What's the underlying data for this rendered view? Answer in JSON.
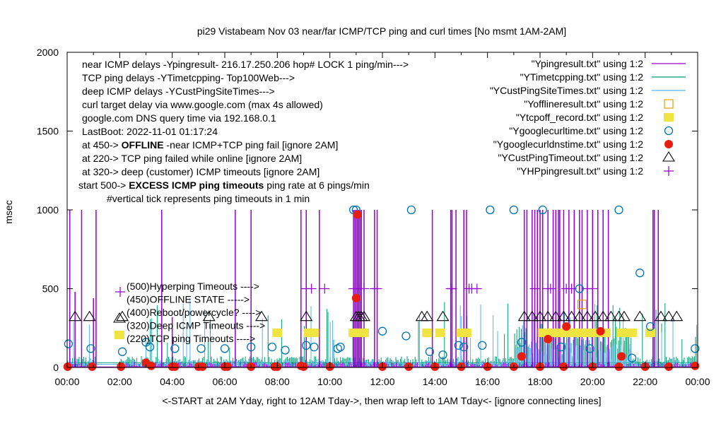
{
  "chart_data": {
    "type": "line",
    "title": "pi29 Vistabeam Nov 03  near/far ICMP/TCP ping and curl times [No msmt 1AM-2AM]",
    "xlabel": "<-START at 2AM Yday, right to 12AM Tday->, then wrap left to 1AM Tday<- [ignore connecting lines]",
    "ylabel": "msec",
    "xlim": [
      0,
      24
    ],
    "ylim": [
      0,
      2000
    ],
    "x_ticks": [
      "00:00",
      "02:00",
      "04:00",
      "06:00",
      "08:00",
      "10:00",
      "12:00",
      "14:00",
      "16:00",
      "18:00",
      "20:00",
      "22:00",
      "00:00"
    ],
    "y_ticks": [
      "0",
      "500",
      "1000",
      "1500",
      "2000"
    ],
    "y_tick_values": [
      0,
      500,
      1000,
      1500,
      2000
    ],
    "grid": false,
    "legend_placement": "top-right",
    "colors": {
      "ping": "#9400d3",
      "tcp": "#009e73",
      "cust": "#56b4e9",
      "offline": "#e69f00",
      "tcpoff": "#f0e442",
      "curl": "#0072b2",
      "dns": "#e51e10",
      "custtimeout": "#000000",
      "hp": "#9400d3"
    },
    "annotations_top": [
      {
        "text": "near ICMP delays -Ypingresult- 216.17.250.206 hop# LOCK 1 ping/min--->"
      },
      {
        "text": "TCP ping delays -YTimetcpping- Top100Web--->"
      },
      {
        "text": "deep ICMP delays -YCustPingSiteTimes--->"
      },
      {
        "text": "curl target delay via www.google.com (max 4s allowed)"
      },
      {
        "text": "google.com DNS query time via 192.168.0.1"
      },
      {
        "text": "LastBoot: 2022-11-01 01:17:24"
      },
      {
        "pre": "at 450-> ",
        "bold": "OFFLINE",
        "post": " -near ICMP+TCP ping fail [ignore 2AM]"
      },
      {
        "text": "at 220-> TCP ping failed while online [ignore 2AM]"
      },
      {
        "text": "at 320-> deep (customer) ICMP timeouts [ignore 2AM]"
      },
      {
        "pre": "start 500-> ",
        "bold": "EXCESS ICMP ping timeouts",
        "post": " ping rate at 6 pings/min"
      },
      {
        "text": "#vertical tick represents ping timeouts in 1 min"
      }
    ],
    "annotations_bottom": [
      "(500)Hyperping Timeouts ---->",
      "(450)OFFLINE STATE ----->",
      "(400)Reboot/powercycle? ---->",
      "(320)Deep ICMP Timeouts ---->",
      "(220)TCP ping Timeouts ---->"
    ],
    "legend": [
      {
        "label": "\"Ypingresult.txt\" using 1:2",
        "style": "line",
        "color_key": "ping"
      },
      {
        "label": "\"YTimetcpping.txt\" using 1:2",
        "style": "line",
        "color_key": "tcp"
      },
      {
        "label": "\"YCustPingSiteTimes.txt\" using 1:2",
        "style": "line",
        "color_key": "cust"
      },
      {
        "label": "\"Yofflineresult.txt\" using 1:2",
        "style": "open-square",
        "color_key": "offline"
      },
      {
        "label": "\"Ytcpoff_record.txt\" using 1:2",
        "style": "filled-square",
        "color_key": "tcpoff"
      },
      {
        "label": "\"Ygooglecurltime.txt\" using 1:2",
        "style": "open-circle",
        "color_key": "curl"
      },
      {
        "label": "\"Ygooglecurldnstime.txt\" using 1:2",
        "style": "filled-circle",
        "color_key": "dns"
      },
      {
        "label": "\"YCustPingTimeout.txt\" using 1:2",
        "style": "open-triangle",
        "color_key": "custtimeout"
      },
      {
        "label": "\"YHPpingresult.txt\" using 1:2",
        "style": "plus",
        "color_key": "hp"
      }
    ],
    "series": [
      {
        "name": "Ypingresult.txt",
        "kind": "spikes",
        "color_key": "ping",
        "x": [
          0.1,
          0.3,
          0.55,
          1.0,
          1.1,
          3.6,
          4.0,
          6.4,
          7.0,
          8.9,
          9.1,
          9.6,
          10.9,
          10.95,
          11.0,
          11.05,
          11.1,
          11.15,
          11.2,
          11.3,
          11.7,
          11.8,
          13.9,
          14.6,
          14.65,
          14.8,
          15.1,
          15.2,
          17.4,
          17.5,
          17.7,
          17.8,
          17.9,
          18.0,
          18.1,
          18.3,
          18.5,
          18.6,
          18.7,
          18.75,
          18.9,
          19.1,
          19.3,
          19.5,
          19.6,
          19.8,
          20.0,
          20.2,
          20.4,
          20.6,
          22.3,
          22.35,
          22.5
        ],
        "y": [
          1000,
          480,
          1000,
          440,
          1000,
          1000,
          320,
          1000,
          1000,
          1000,
          1000,
          1000,
          1000,
          1000,
          1000,
          1000,
          1000,
          1000,
          1000,
          1000,
          1000,
          1000,
          1000,
          1000,
          1000,
          1000,
          1000,
          1000,
          1000,
          1000,
          1000,
          1000,
          1000,
          1000,
          1000,
          1000,
          1000,
          1000,
          1000,
          1000,
          1000,
          1000,
          1000,
          1000,
          1000,
          1000,
          1000,
          1000,
          1000,
          1000,
          1000,
          1000,
          1000
        ]
      },
      {
        "name": "YTimetcpping.txt",
        "kind": "noise",
        "color_key": "tcp",
        "level": 60,
        "peak": 420
      },
      {
        "name": "YCustPingSiteTimes.txt",
        "kind": "noise",
        "color_key": "cust",
        "level": 40,
        "peak": 450
      },
      {
        "name": "Yofflineresult.txt",
        "kind": "open-square",
        "color_key": "offline",
        "x": [
          19.6
        ],
        "y": [
          400
        ]
      },
      {
        "name": "Ytcpoff_record.txt",
        "kind": "filled-square",
        "color_key": "tcpoff",
        "x": [
          8.0,
          9.2,
          9.4,
          10.9,
          11.0,
          11.1,
          11.2,
          11.3,
          13.7,
          14.2,
          15.0,
          15.2,
          18.1,
          18.3,
          18.5,
          18.7,
          18.9,
          19.1,
          19.3,
          19.5,
          19.7,
          19.9,
          20.1,
          20.3,
          20.5,
          21.1,
          21.3,
          21.5,
          22.2
        ],
        "y": [
          220,
          220,
          220,
          220,
          220,
          220,
          220,
          220,
          220,
          220,
          220,
          220,
          220,
          220,
          220,
          220,
          220,
          220,
          220,
          220,
          220,
          220,
          220,
          220,
          220,
          220,
          220,
          220,
          220
        ]
      },
      {
        "name": "Ygooglecurltime.txt",
        "kind": "open-circle",
        "color_key": "curl",
        "x": [
          0.05,
          0.9,
          2.1,
          3.0,
          3.15,
          4.1,
          5.1,
          6.0,
          7.0,
          7.8,
          8.3,
          9.1,
          9.4,
          10.3,
          10.4,
          10.9,
          11.0,
          12.0,
          12.9,
          13.1,
          13.8,
          14.3,
          14.9,
          15.1,
          15.8,
          16.1,
          17.0,
          17.3,
          18.1,
          18.8,
          19.5,
          19.9,
          21.0,
          21.5,
          21.8,
          22.2,
          23.9
        ],
        "y": [
          150,
          120,
          100,
          160,
          130,
          120,
          120,
          120,
          130,
          130,
          110,
          140,
          130,
          120,
          130,
          1000,
          1000,
          230,
          200,
          1000,
          100,
          80,
          140,
          130,
          140,
          1000,
          1000,
          160,
          1000,
          130,
          500,
          120,
          1000,
          60,
          600,
          260,
          120
        ]
      },
      {
        "name": "Ygooglecurldnstime.txt",
        "kind": "filled-circle",
        "color_key": "dns",
        "x": [
          0.02,
          0.95,
          2.05,
          3.0,
          3.2,
          4.0,
          4.1,
          5.0,
          5.15,
          6.0,
          6.1,
          7.0,
          7.9,
          8.0,
          8.9,
          9.0,
          10.0,
          11.0,
          11.05,
          12.0,
          13.0,
          14.0,
          15.0,
          16.0,
          17.0,
          17.3,
          18.0,
          18.3,
          18.9,
          19.0,
          20.0,
          20.3,
          21.0,
          21.1,
          22.0,
          22.9,
          23.9
        ],
        "y": [
          5,
          5,
          5,
          30,
          10,
          5,
          5,
          5,
          5,
          5,
          5,
          5,
          5,
          5,
          10,
          5,
          5,
          440,
          970,
          5,
          5,
          5,
          5,
          5,
          5,
          70,
          5,
          180,
          5,
          260,
          5,
          230,
          5,
          70,
          5,
          5,
          10
        ]
      },
      {
        "name": "YCustPingTimeout.txt",
        "kind": "open-triangle",
        "color_key": "custtimeout",
        "x": [
          0.3,
          0.85,
          2.1,
          5.4,
          7.4,
          9.1,
          11.0,
          11.1,
          11.2,
          11.3,
          13.5,
          13.7,
          14.3,
          17.4,
          17.7,
          18.0,
          18.3,
          18.6,
          18.9,
          19.2,
          19.5,
          19.8,
          20.1,
          20.4,
          20.7,
          21.0,
          21.2,
          21.8,
          22.6,
          22.9,
          23.2
        ],
        "y": [
          320,
          320,
          320,
          320,
          320,
          320,
          320,
          320,
          320,
          320,
          320,
          320,
          320,
          320,
          320,
          320,
          320,
          320,
          320,
          320,
          320,
          320,
          320,
          320,
          320,
          320,
          320,
          320,
          320,
          320,
          320
        ]
      },
      {
        "name": "YHPpingresult.txt",
        "kind": "plus",
        "color_key": "hp",
        "x": [
          9.1,
          9.3,
          9.8,
          10.9,
          11.1,
          11.3,
          11.7,
          11.8,
          14.6,
          14.65,
          15.3,
          15.4,
          15.6,
          17.8,
          18.3,
          18.4,
          19.0,
          19.2,
          19.8,
          20.0
        ],
        "y": [
          500,
          500,
          500,
          500,
          500,
          500,
          500,
          500,
          500,
          500,
          500,
          500,
          500,
          500,
          500,
          500,
          500,
          500,
          500,
          500
        ]
      }
    ]
  }
}
